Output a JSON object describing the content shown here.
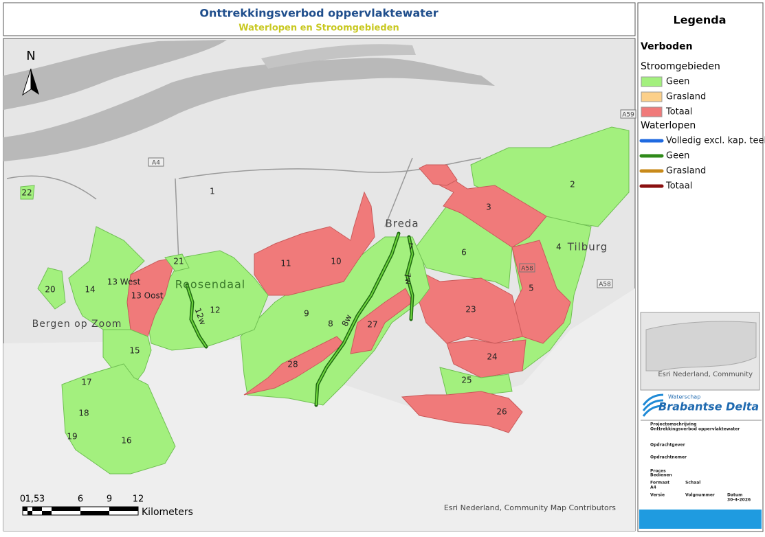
{
  "header": {
    "title": "Onttrekkingsverbod oppervlaktewater",
    "subtitle": "Waterlopen en Stroomgebieden"
  },
  "map": {
    "north": "N",
    "places": [
      "Breda",
      "Tilburg",
      "Roosendaal",
      "Bergen op Zoom"
    ],
    "roads": [
      "A4",
      "A58",
      "A58",
      "A59"
    ],
    "areas": [
      "1",
      "2",
      "3",
      "4",
      "5",
      "6",
      "7",
      "8",
      "9",
      "10",
      "11",
      "12",
      "13 West",
      "13 Oost",
      "14",
      "15",
      "16",
      "17",
      "18",
      "19",
      "20",
      "21",
      "22",
      "23",
      "24",
      "25",
      "26",
      "27",
      "28"
    ],
    "waterways": [
      "12w",
      "8w",
      "7w"
    ],
    "attribution": "Esri Nederland, Community Map Contributors"
  },
  "scale": {
    "labels": [
      "0",
      "1,5",
      "3",
      "6",
      "9",
      "12"
    ],
    "unit": "Kilometers"
  },
  "legend": {
    "title": "Legenda",
    "heading": "Verboden",
    "groups": [
      {
        "name": "Stroomgebieden",
        "items": [
          "Geen",
          "Grasland",
          "Totaal"
        ]
      },
      {
        "name": "Waterlopen",
        "items": [
          "Volledig excl. kap. teelt",
          "Geen",
          "Grasland",
          "Totaal"
        ]
      }
    ]
  },
  "inset": {
    "attribution": "Esri Nederland, Community"
  },
  "logo": {
    "org": "Waterschap",
    "name": "Brabantse Delta"
  },
  "info": {
    "project_label": "Projectomschrijving",
    "project": "Onttrekkingsverbod oppervlaktewater",
    "client": "Opdrachtgever",
    "contractor": "Opdrachtnemer",
    "process": "Proces",
    "process2": "Bedienen",
    "format_label": "Formaat",
    "format": "A4",
    "scale_label": "Schaal",
    "version": "Versie",
    "number": "Volgnummer",
    "date_label": "Datum",
    "date": "30-4-2026"
  }
}
